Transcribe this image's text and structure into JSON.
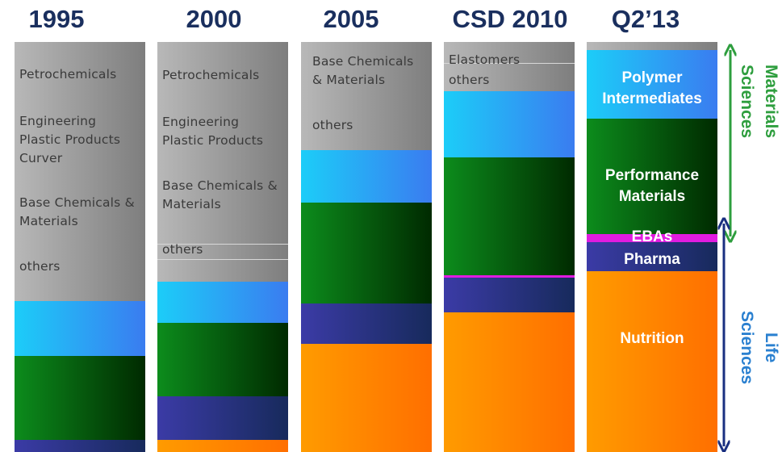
{
  "columns": [
    {
      "title": "1995",
      "labels": [
        [
          "Petrochemicals"
        ],
        [
          "Engineering",
          "Plastic Products",
          "Curver"
        ],
        [
          "Base Chemicals &",
          "Materials"
        ],
        [
          "others"
        ]
      ]
    },
    {
      "title": "2000",
      "labels": [
        [
          "Petrochemicals"
        ],
        [
          "Engineering",
          "Plastic Products"
        ],
        [
          "Base Chemicals &",
          "Materials"
        ],
        [
          "others"
        ]
      ]
    },
    {
      "title": "2005",
      "labels": [
        [
          "Base Chemicals",
          "& Materials"
        ],
        [
          "others"
        ]
      ]
    },
    {
      "title": "CSD 2010",
      "labels": [
        [
          "Elastomers"
        ],
        [
          "others"
        ]
      ]
    },
    {
      "title": "Q2’13",
      "labels": [
        [
          "Polymer",
          "Intermediates"
        ],
        [
          "Performance",
          "Materials"
        ],
        [
          "EBAs"
        ],
        [
          "Pharma"
        ],
        [
          "Nutrition"
        ]
      ]
    }
  ],
  "groups": [
    {
      "lines": [
        "Materials",
        "Sciences"
      ]
    },
    {
      "lines": [
        "Life",
        "Sciences"
      ]
    }
  ]
}
